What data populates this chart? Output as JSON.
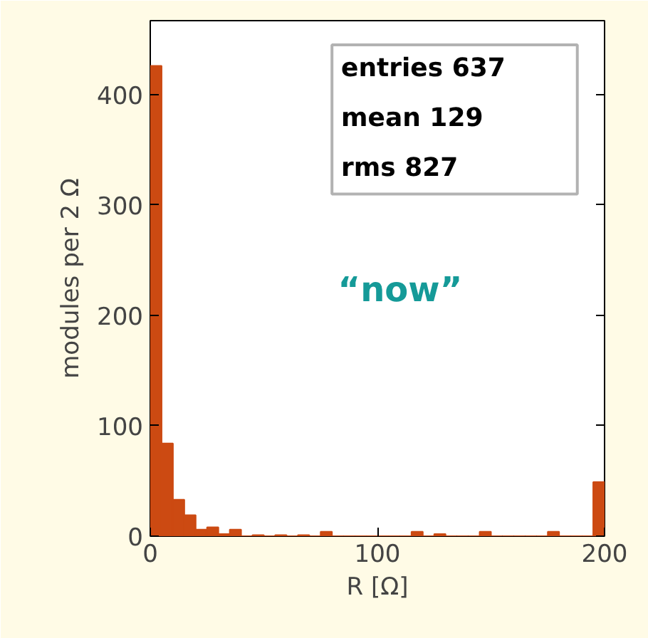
{
  "chart_data": {
    "type": "histogram",
    "xlabel": "R [Ω]",
    "ylabel": "modules per 2 Ω",
    "bins": [
      0,
      5,
      10,
      15,
      20,
      25,
      30,
      35,
      40,
      45,
      50,
      55,
      60,
      65,
      70,
      75,
      80,
      85,
      90,
      95,
      100,
      105,
      110,
      115,
      120,
      125,
      130,
      135,
      140,
      145,
      150,
      155,
      160,
      165,
      170,
      175,
      180,
      185,
      190,
      195,
      200
    ],
    "values": [
      426,
      84,
      33,
      19,
      6,
      8,
      2,
      6,
      0,
      1,
      0,
      1,
      0,
      1,
      0,
      4,
      0,
      0,
      0,
      0,
      0,
      0,
      0,
      4,
      0,
      2,
      0,
      0,
      0,
      4,
      0,
      0,
      0,
      0,
      0,
      4,
      0,
      0,
      0,
      49
    ],
    "color": "#cc4a12",
    "xlim": [
      0,
      200
    ],
    "ylim": [
      0,
      467
    ],
    "xticks": [
      0,
      100,
      200
    ],
    "yticks": [
      0,
      100,
      200,
      300,
      400
    ],
    "tick_labels": "xy",
    "grid": false,
    "annotations": [
      "entries 637",
      "mean 129",
      "rms 827",
      "“now”"
    ]
  }
}
